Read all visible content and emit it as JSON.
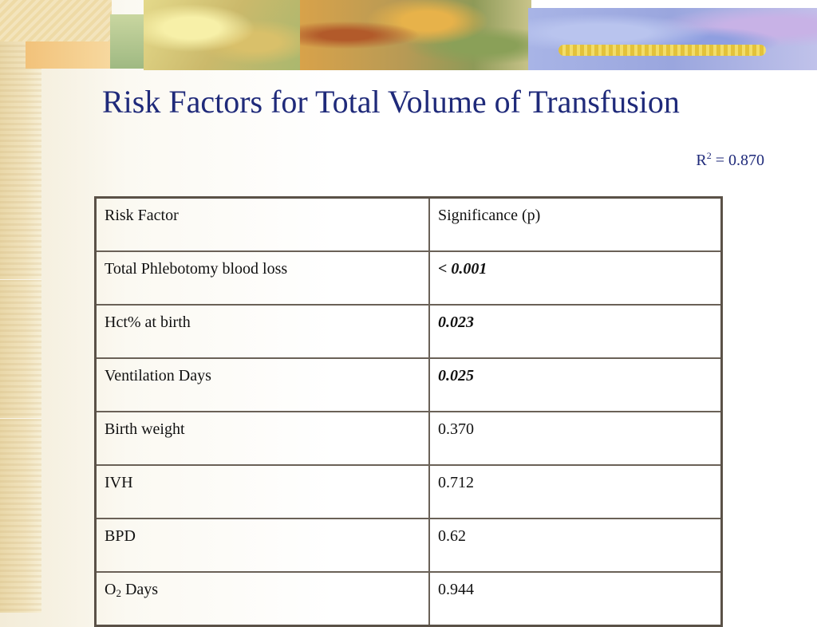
{
  "slide": {
    "title": "Risk Factors for Total Volume of Transfusion",
    "r2_base": "R",
    "r2_exp": "2",
    "r2_value": " = 0.870"
  },
  "table": {
    "header": {
      "factor": "Risk Factor",
      "significance": "Significance (p)"
    },
    "rows": [
      {
        "factor": "Total Phlebotomy blood loss",
        "p": "< 0.001",
        "bold": true
      },
      {
        "factor": "Hct% at birth",
        "p": "0.023",
        "bold": true
      },
      {
        "factor": "Ventilation Days",
        "p": "0.025",
        "bold": true
      },
      {
        "factor": "Birth weight",
        "p": "0.370",
        "bold": false
      },
      {
        "factor": "IVH",
        "p": "0.712",
        "bold": false
      },
      {
        "factor": "BPD",
        "p": "0.62",
        "bold": false
      },
      {
        "factor_base": "O",
        "factor_sub": "2",
        "factor_rest": " Days",
        "p": "0.944",
        "bold": false
      }
    ]
  },
  "colors": {
    "title": "#1f2a7a",
    "table_border": "#5a5147"
  },
  "icons": [
    "decorative-leaf-banner",
    "parchment-strip"
  ]
}
